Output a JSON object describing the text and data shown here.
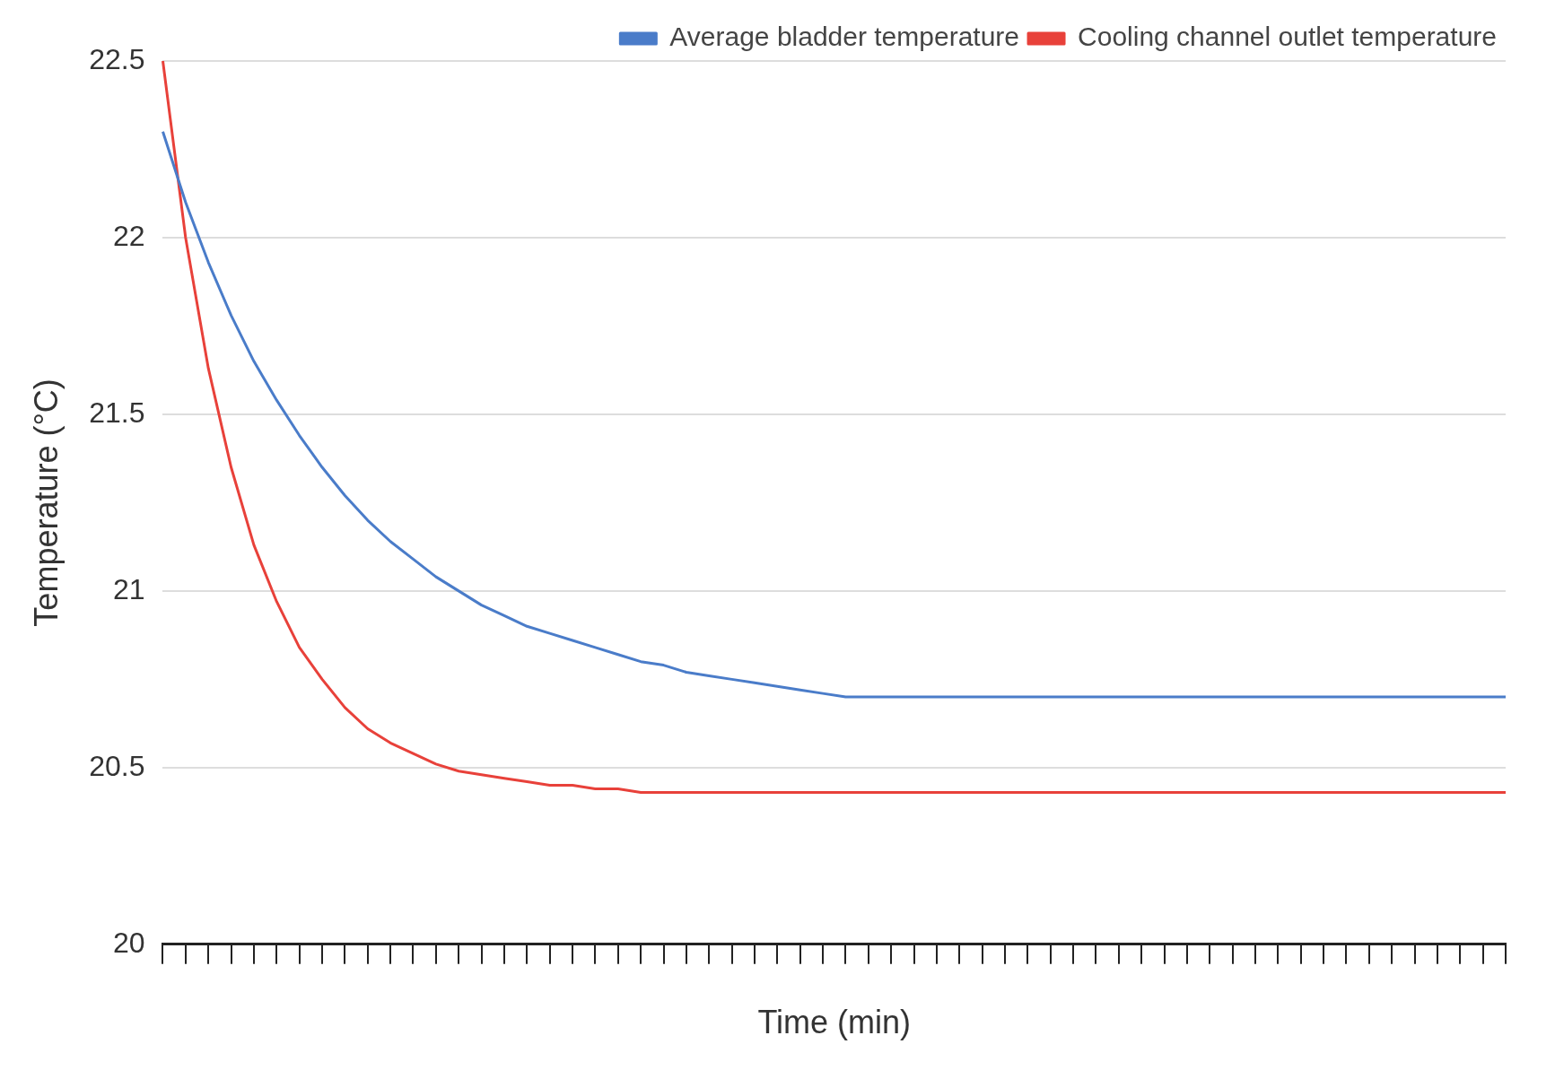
{
  "chart_data": {
    "type": "line",
    "xlabel": "Time (min)",
    "ylabel": "Temperature (°C)",
    "categories": [
      null,
      null,
      null,
      null,
      null,
      null,
      null,
      null,
      null,
      null,
      null,
      null,
      null,
      null,
      null,
      null,
      null,
      null,
      null,
      null,
      null,
      null,
      null,
      null,
      null,
      null,
      null,
      null,
      null,
      null,
      null,
      null,
      null,
      null,
      null,
      null,
      null,
      null,
      null,
      null,
      null,
      null,
      null,
      null,
      null,
      null,
      null,
      null,
      null,
      null,
      null,
      null,
      null,
      null,
      null,
      null,
      null,
      null,
      null,
      null
    ],
    "series": [
      {
        "name": "Average bladder temperature",
        "color": "#4a7cc9",
        "values": [
          22.3,
          22.1,
          21.93,
          21.78,
          21.65,
          21.54,
          21.44,
          21.35,
          21.27,
          21.2,
          21.14,
          21.09,
          21.04,
          21.0,
          20.96,
          20.93,
          20.9,
          20.88,
          20.86,
          20.84,
          20.82,
          20.8,
          20.79,
          20.77,
          20.76,
          20.75,
          20.74,
          20.73,
          20.72,
          20.71,
          20.7,
          20.7,
          20.7,
          20.7,
          20.7,
          20.7,
          20.7,
          20.7,
          20.7,
          20.7,
          20.7,
          20.7,
          20.7,
          20.7,
          20.7,
          20.7,
          20.7,
          20.7,
          20.7,
          20.7,
          20.7,
          20.7,
          20.7,
          20.7,
          20.7,
          20.7,
          20.7,
          20.7,
          20.7,
          20.7
        ]
      },
      {
        "name": "Cooling channel outlet temperature",
        "color": "#e8413a",
        "values": [
          22.5,
          22.0,
          21.63,
          21.35,
          21.13,
          20.97,
          20.84,
          20.75,
          20.67,
          20.61,
          20.57,
          20.54,
          20.51,
          20.49,
          20.48,
          20.47,
          20.46,
          20.45,
          20.45,
          20.44,
          20.44,
          20.43,
          20.43,
          20.43,
          20.43,
          20.43,
          20.43,
          20.43,
          20.43,
          20.43,
          20.43,
          20.43,
          20.43,
          20.43,
          20.43,
          20.43,
          20.43,
          20.43,
          20.43,
          20.43,
          20.43,
          20.43,
          20.43,
          20.43,
          20.43,
          20.43,
          20.43,
          20.43,
          20.43,
          20.43,
          20.43,
          20.43,
          20.43,
          20.43,
          20.43,
          20.43,
          20.43,
          20.43,
          20.43,
          20.43
        ]
      }
    ],
    "ylim": [
      20,
      22.5
    ],
    "yticks": [
      20,
      20.5,
      21,
      21.5,
      22,
      22.5
    ],
    "grid": "y",
    "legend": "top right",
    "marker": "none",
    "line_style": "solid"
  }
}
